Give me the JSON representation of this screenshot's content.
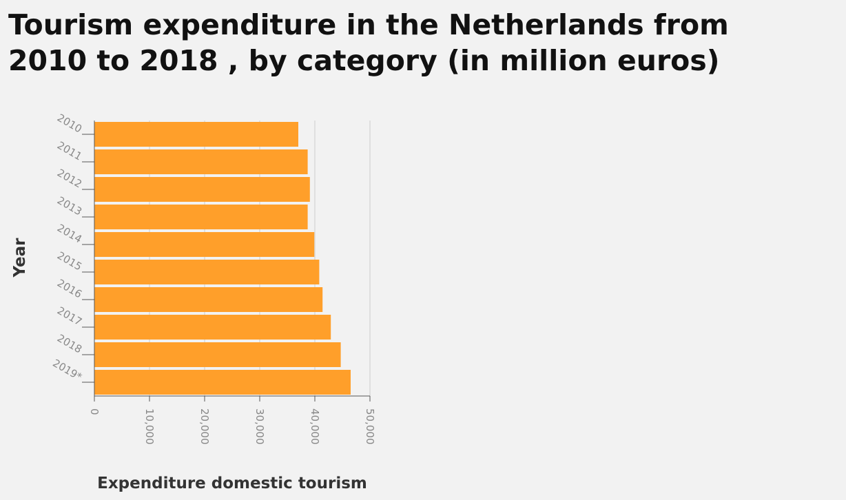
{
  "chart_data": {
    "type": "bar",
    "orientation": "horizontal",
    "title_lines": [
      "Tourism expenditure in the Netherlands from",
      "2010 to 2018 , by category (in million euros)"
    ],
    "xlabel": "Expenditure domestic tourism",
    "ylabel": "Year",
    "categories": [
      "2010",
      "2011",
      "2012",
      "2013",
      "2014",
      "2015",
      "2016",
      "2017",
      "2018",
      "2019*"
    ],
    "values": [
      37000,
      38700,
      39100,
      38700,
      39900,
      40800,
      41400,
      42900,
      44700,
      46500
    ],
    "xlim": [
      0,
      50000
    ],
    "xticks": [
      0,
      10000,
      20000,
      30000,
      40000,
      50000
    ],
    "xtick_labels": [
      "0",
      "10,000",
      "20,000",
      "30,000",
      "40,000",
      "50,000"
    ],
    "grid": "vertical",
    "legend": "none",
    "bar_color": "#ff9f2a"
  }
}
